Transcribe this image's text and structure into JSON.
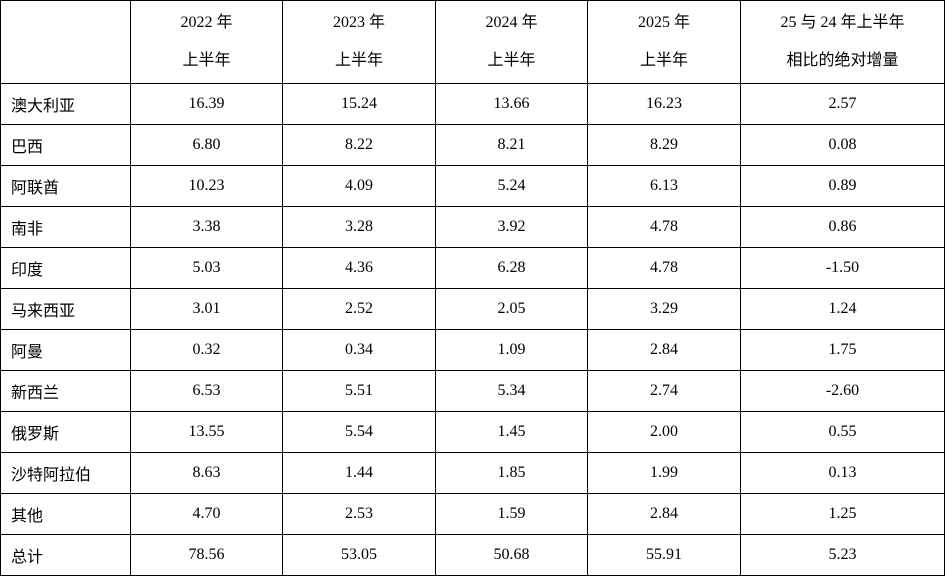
{
  "table": {
    "header": [
      [
        "2022 年",
        "上半年"
      ],
      [
        "2023 年",
        "上半年"
      ],
      [
        "2024 年",
        "上半年"
      ],
      [
        "2025 年",
        "上半年"
      ],
      [
        "25 与 24 年上半年",
        "相比的绝对增量"
      ]
    ],
    "rows": [
      [
        "澳大利亚",
        "16.39",
        "15.24",
        "13.66",
        "16.23",
        "2.57"
      ],
      [
        "巴西",
        "6.80",
        "8.22",
        "8.21",
        "8.29",
        "0.08"
      ],
      [
        "阿联酋",
        "10.23",
        "4.09",
        "5.24",
        "6.13",
        "0.89"
      ],
      [
        "南非",
        "3.38",
        "3.28",
        "3.92",
        "4.78",
        "0.86"
      ],
      [
        "印度",
        "5.03",
        "4.36",
        "6.28",
        "4.78",
        "-1.50"
      ],
      [
        "马来西亚",
        "3.01",
        "2.52",
        "2.05",
        "3.29",
        "1.24"
      ],
      [
        "阿曼",
        "0.32",
        "0.34",
        "1.09",
        "2.84",
        "1.75"
      ],
      [
        "新西兰",
        "6.53",
        "5.51",
        "5.34",
        "2.74",
        "-2.60"
      ],
      [
        "俄罗斯",
        "13.55",
        "5.54",
        "1.45",
        "2.00",
        "0.55"
      ],
      [
        "沙特阿拉伯",
        "8.63",
        "1.44",
        "1.85",
        "1.99",
        "0.13"
      ],
      [
        "其他",
        "4.70",
        "2.53",
        "1.59",
        "2.84",
        "1.25"
      ],
      [
        "总计",
        "78.56",
        "53.05",
        "50.68",
        "55.91",
        "5.23"
      ]
    ]
  }
}
